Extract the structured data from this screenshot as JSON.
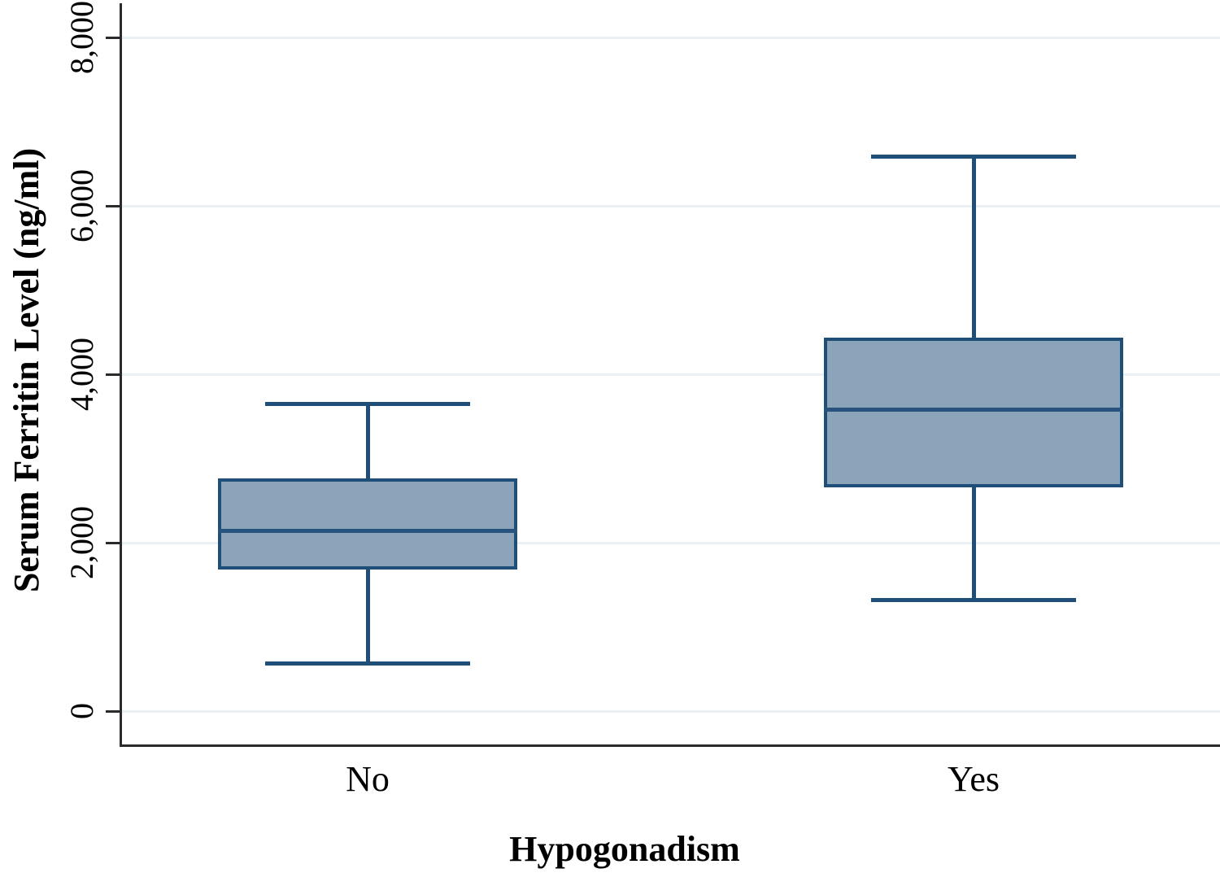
{
  "chart_data": {
    "type": "boxplot",
    "title": "",
    "xlabel": "Hypogonadism",
    "ylabel": "Serum Ferritin Level (ng/ml)",
    "ylim": [
      0,
      8000
    ],
    "grid": true,
    "legend": "none",
    "yticks": [
      0,
      2000,
      4000,
      6000,
      8000
    ],
    "ytick_labels": [
      "0",
      "2,000",
      "4,000",
      "6,000",
      "8,000"
    ],
    "categories": [
      "No",
      "Yes"
    ],
    "series": [
      {
        "name": "No",
        "whisker_low": 570,
        "q1": 1680,
        "median": 2140,
        "q3": 2760,
        "whisker_high": 3650
      },
      {
        "name": "Yes",
        "whisker_low": 1320,
        "q1": 2660,
        "median": 3580,
        "q3": 4430,
        "whisker_high": 6580
      }
    ],
    "colors": {
      "box_fill": "#8ca4ba",
      "box_border": "#1f4e79",
      "median": "#27537e",
      "axis": "#2b2b2b",
      "gridline": "#e9f1f5",
      "text": "#000000",
      "background": "#ffffff"
    }
  }
}
